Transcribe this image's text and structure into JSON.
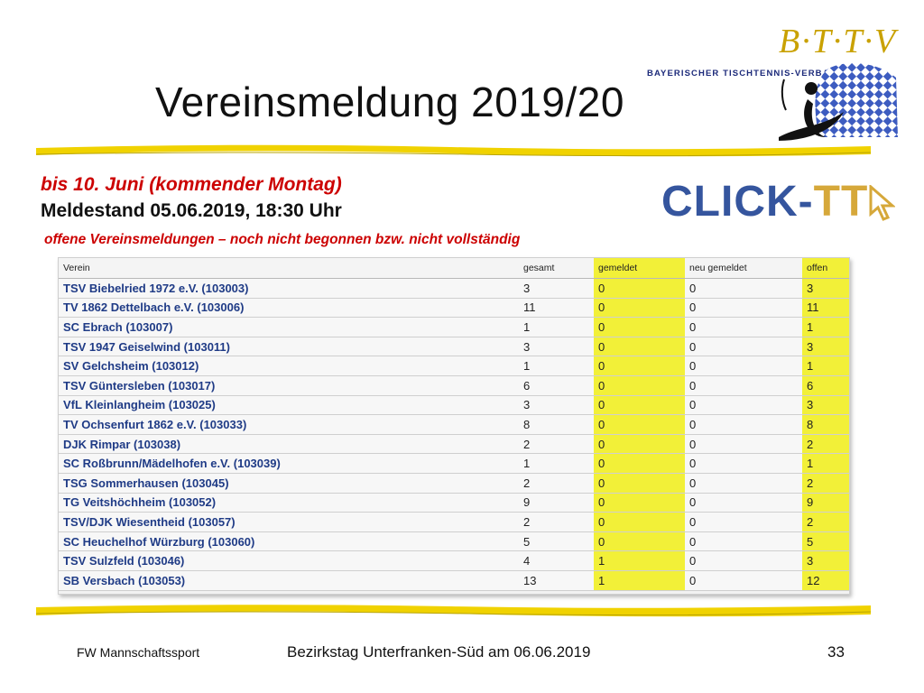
{
  "slide": {
    "title": "Vereinsmeldung 2019/20",
    "deadline": "bis 10. Juni (kommender Montag)",
    "status": "Meldestand 05.06.2019, 18:30 Uhr",
    "note": "offene Vereinsmeldungen – noch nicht begonnen bzw. nicht vollständig"
  },
  "logo": {
    "letters": "B·T·T·V",
    "org_name": "BAYERISCHER TISCHTENNIS-VERBAND E.V.",
    "colors": {
      "gold": "#c9a100",
      "blue": "#1c2a7a"
    }
  },
  "clicktt": {
    "part1": "CLICK-",
    "part2": "TT"
  },
  "table": {
    "headers": [
      "Verein",
      "gesamt",
      "gemeldet",
      "neu gemeldet",
      "offen"
    ],
    "rows": [
      {
        "verein": "TSV Biebelried 1972 e.V. (103003)",
        "gesamt": "3",
        "gemeldet": "0",
        "neu": "0",
        "offen": "3"
      },
      {
        "verein": "TV 1862 Dettelbach e.V. (103006)",
        "gesamt": "11",
        "gemeldet": "0",
        "neu": "0",
        "offen": "11"
      },
      {
        "verein": "SC Ebrach (103007)",
        "gesamt": "1",
        "gemeldet": "0",
        "neu": "0",
        "offen": "1"
      },
      {
        "verein": "TSV 1947 Geiselwind (103011)",
        "gesamt": "3",
        "gemeldet": "0",
        "neu": "0",
        "offen": "3"
      },
      {
        "verein": "SV Gelchsheim (103012)",
        "gesamt": "1",
        "gemeldet": "0",
        "neu": "0",
        "offen": "1"
      },
      {
        "verein": "TSV Güntersleben (103017)",
        "gesamt": "6",
        "gemeldet": "0",
        "neu": "0",
        "offen": "6"
      },
      {
        "verein": "VfL Kleinlangheim (103025)",
        "gesamt": "3",
        "gemeldet": "0",
        "neu": "0",
        "offen": "3"
      },
      {
        "verein": "TV Ochsenfurt 1862 e.V. (103033)",
        "gesamt": "8",
        "gemeldet": "0",
        "neu": "0",
        "offen": "8"
      },
      {
        "verein": "DJK Rimpar (103038)",
        "gesamt": "2",
        "gemeldet": "0",
        "neu": "0",
        "offen": "2"
      },
      {
        "verein": "SC Roßbrunn/Mädelhofen e.V. (103039)",
        "gesamt": "1",
        "gemeldet": "0",
        "neu": "0",
        "offen": "1"
      },
      {
        "verein": "TSG Sommerhausen (103045)",
        "gesamt": "2",
        "gemeldet": "0",
        "neu": "0",
        "offen": "2"
      },
      {
        "verein": "TG Veitshöchheim (103052)",
        "gesamt": "9",
        "gemeldet": "0",
        "neu": "0",
        "offen": "9"
      },
      {
        "verein": "TSV/DJK Wiesentheid (103057)",
        "gesamt": "2",
        "gemeldet": "0",
        "neu": "0",
        "offen": "2"
      },
      {
        "verein": "SC Heuchelhof Würzburg (103060)",
        "gesamt": "5",
        "gemeldet": "0",
        "neu": "0",
        "offen": "5"
      },
      {
        "verein": "TSV Sulzfeld (103046)",
        "gesamt": "4",
        "gemeldet": "1",
        "neu": "0",
        "offen": "3"
      },
      {
        "verein": "SB Versbach (103053)",
        "gesamt": "13",
        "gemeldet": "1",
        "neu": "0",
        "offen": "12"
      }
    ],
    "highlight_color": "#f2f038"
  },
  "footer": {
    "left": "FW Mannschaftssport",
    "center": "Bezirkstag Unterfranken-Süd am 06.06.2019",
    "page": "33"
  }
}
